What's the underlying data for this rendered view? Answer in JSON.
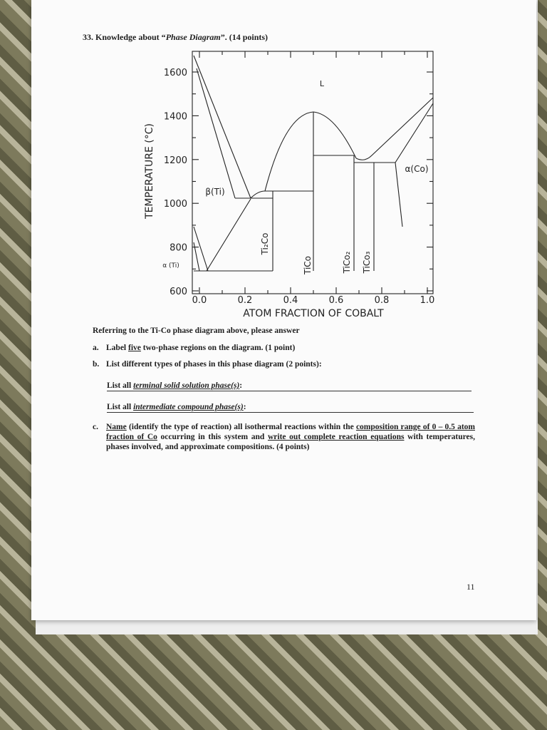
{
  "header": {
    "title_parts": [
      "33. Knowledge about “",
      "Phase Diagram",
      "”. (14 points)"
    ]
  },
  "figure": {
    "y_axis_title": "TEMPERATURE (°C)",
    "x_axis_title": "ATOM FRACTION OF COBALT",
    "y_ticks": [
      "1600",
      "1400",
      "1200",
      "1000",
      "800",
      "600"
    ],
    "x_ticks": [
      "0.0",
      "0.2",
      "0.4",
      "0.6",
      "0.8",
      "1.0"
    ],
    "region_labels": [
      "L",
      "β(Ti)",
      "α(Co)",
      "α (Ti)"
    ],
    "compound_labels": [
      "Ti₂Co",
      "TiCo",
      "TiCo₂",
      "TiCo₃"
    ]
  },
  "intro": "Referring to the Ti-Co phase diagram above, please answer",
  "questions": [
    {
      "label": "a.",
      "text_parts": [
        "Label ",
        "five",
        " two-phase regions on the diagram. (1 point)"
      ]
    },
    {
      "label": "b.",
      "text": "List different types of phases in this phase diagram (2 points):",
      "prompts": [
        [
          "List all ",
          "terminal solid solution phase(s)",
          ":"
        ],
        [
          "List all ",
          "intermediate compound phase(s)",
          ":"
        ]
      ]
    },
    {
      "label": "c.",
      "text_parts": [
        "Name",
        " (identify the type of reaction) all isothermal reactions within the ",
        "composition range of 0 – 0.5 atom fraction of Co",
        " occurring in this system and ",
        "write out complete reaction equations",
        " with temperatures, phases involved, and approximate compositions. (4 points)"
      ]
    }
  ],
  "page_number": "11"
}
